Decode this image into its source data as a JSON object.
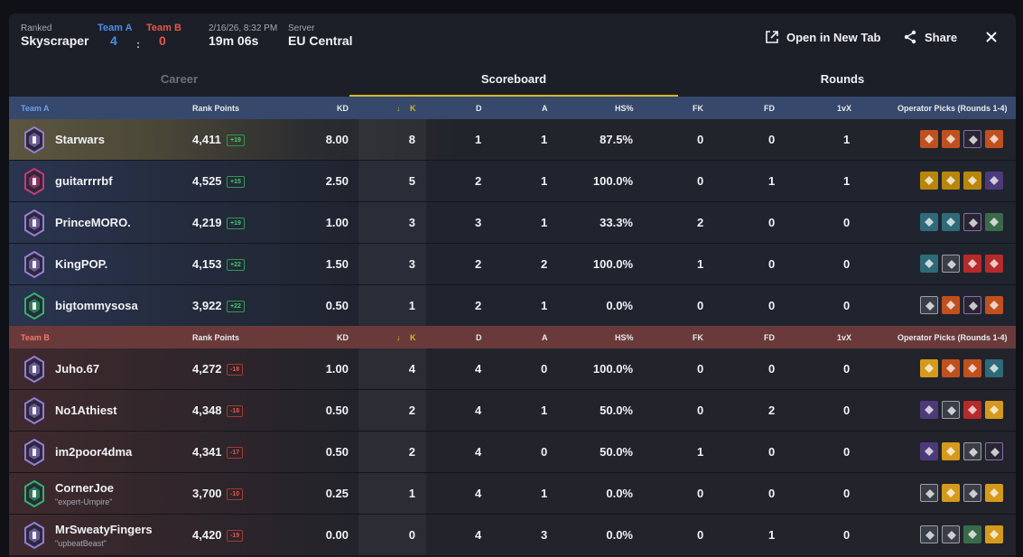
{
  "header": {
    "mode_label": "Ranked",
    "map_name": "Skyscraper",
    "team_a_label": "Team A",
    "team_b_label": "Team B",
    "team_a_score": "4",
    "team_b_score": "0",
    "score_sep": ":",
    "datetime": "2/16/26, 8:32 PM",
    "duration": "19m 06s",
    "server_label": "Server",
    "server_value": "EU Central",
    "open_tab_label": "Open in New Tab",
    "share_label": "Share"
  },
  "tabs": {
    "career": "Career",
    "scoreboard": "Scoreboard",
    "rounds": "Rounds"
  },
  "columns": {
    "rank_points": "Rank Points",
    "kd": "KD",
    "k": "K",
    "d": "D",
    "a": "A",
    "hs": "HS%",
    "fk": "FK",
    "fd": "FD",
    "onevx": "1vX",
    "operator_picks": "Operator Picks (Rounds 1-4)"
  },
  "team_a": {
    "name": "Team A",
    "players": [
      {
        "name": "Starwars",
        "sub": "",
        "rp": "4,411",
        "delta": "+19",
        "kd": "8.00",
        "k": "8",
        "d": "1",
        "a": "1",
        "hs": "87.5%",
        "fk": "0",
        "fd": "0",
        "onevx": "1",
        "rank_badge": "diamond-purple",
        "ops": [
          "orange",
          "orange",
          "dark",
          "orange"
        ]
      },
      {
        "name": "guitarrrrbf",
        "sub": "",
        "rp": "4,525",
        "delta": "+15",
        "kd": "2.50",
        "k": "5",
        "d": "2",
        "a": "1",
        "hs": "100.0%",
        "fk": "0",
        "fd": "1",
        "onevx": "1",
        "rank_badge": "champion-4209",
        "ops": [
          "gold2",
          "gold2",
          "gold2",
          "purple"
        ]
      },
      {
        "name": "PrinceMORO.",
        "sub": "",
        "rp": "4,219",
        "delta": "+19",
        "kd": "1.00",
        "k": "3",
        "d": "3",
        "a": "1",
        "hs": "33.3%",
        "fk": "2",
        "fd": "0",
        "onevx": "0",
        "rank_badge": "diamond-purple",
        "ops": [
          "teal",
          "teal",
          "dark",
          "green"
        ]
      },
      {
        "name": "KingPOP.",
        "sub": "",
        "rp": "4,153",
        "delta": "+22",
        "kd": "1.50",
        "k": "3",
        "d": "2",
        "a": "2",
        "hs": "100.0%",
        "fk": "1",
        "fd": "0",
        "onevx": "0",
        "rank_badge": "diamond-purple",
        "ops": [
          "teal",
          "gray",
          "red",
          "red"
        ]
      },
      {
        "name": "bigtommysosa",
        "sub": "",
        "rp": "3,922",
        "delta": "+22",
        "kd": "0.50",
        "k": "1",
        "d": "2",
        "a": "1",
        "hs": "0.0%",
        "fk": "0",
        "fd": "0",
        "onevx": "0",
        "rank_badge": "emerald-green",
        "ops": [
          "gray",
          "orange",
          "dark",
          "orange"
        ]
      }
    ]
  },
  "team_b": {
    "name": "Team B",
    "players": [
      {
        "name": "Juho.67",
        "sub": "",
        "rp": "4,272",
        "delta": "-18",
        "kd": "1.00",
        "k": "4",
        "d": "4",
        "a": "0",
        "hs": "100.0%",
        "fk": "0",
        "fd": "0",
        "onevx": "0",
        "rank_badge": "diamond-purple",
        "ops": [
          "amber",
          "orange",
          "orange",
          "teal"
        ]
      },
      {
        "name": "No1Athiest",
        "sub": "",
        "rp": "4,348",
        "delta": "-18",
        "kd": "0.50",
        "k": "2",
        "d": "4",
        "a": "1",
        "hs": "50.0%",
        "fk": "0",
        "fd": "2",
        "onevx": "0",
        "rank_badge": "diamond-purple",
        "ops": [
          "purple",
          "gray",
          "red",
          "amber"
        ]
      },
      {
        "name": "im2poor4dma",
        "sub": "",
        "rp": "4,341",
        "delta": "-17",
        "kd": "0.50",
        "k": "2",
        "d": "4",
        "a": "0",
        "hs": "50.0%",
        "fk": "1",
        "fd": "0",
        "onevx": "0",
        "rank_badge": "diamond-purple",
        "ops": [
          "purple",
          "amber",
          "gray",
          "dark"
        ]
      },
      {
        "name": "CornerJoe",
        "sub": "\"expert-Umpire\"",
        "rp": "3,700",
        "delta": "-10",
        "kd": "0.25",
        "k": "1",
        "d": "4",
        "a": "1",
        "hs": "0.0%",
        "fk": "0",
        "fd": "0",
        "onevx": "0",
        "rank_badge": "emerald-green",
        "ops": [
          "gray",
          "amber",
          "gray",
          "amber"
        ]
      },
      {
        "name": "MrSweatyFingers",
        "sub": "\"upbeatBeast\"",
        "rp": "4,420",
        "delta": "-19",
        "kd": "0.00",
        "k": "0",
        "d": "4",
        "a": "3",
        "hs": "0.0%",
        "fk": "0",
        "fd": "1",
        "onevx": "0",
        "rank_badge": "diamond-purple",
        "ops": [
          "gray",
          "gray",
          "green",
          "amber"
        ]
      }
    ]
  },
  "colors": {
    "accent_gold": "#d9b51e",
    "team_a_blue": "#4d8ee8",
    "team_b_red": "#e5574b",
    "positive_green": "#3fcf6a"
  }
}
